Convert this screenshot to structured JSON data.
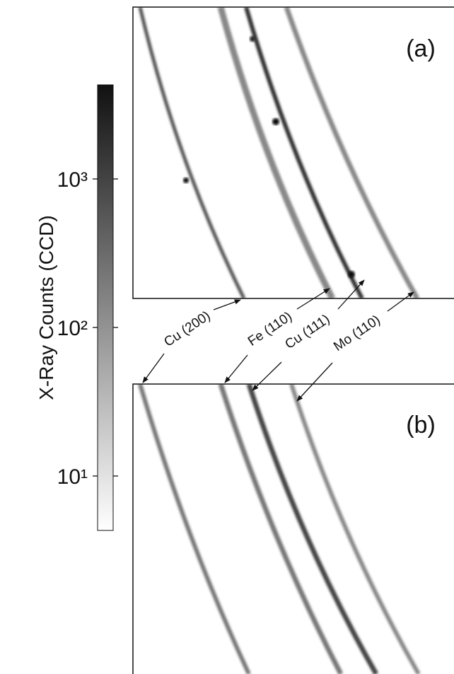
{
  "colorbar": {
    "label": "X-Ray Counts (CCD)",
    "scale": "log",
    "lim": [
      4.3,
      4300
    ],
    "ticks": [
      {
        "value": 1000,
        "label": "10³"
      },
      {
        "value": 100,
        "label": "10²"
      },
      {
        "value": 10,
        "label": "10¹"
      }
    ]
  },
  "panels": [
    {
      "label": "(a)"
    },
    {
      "label": "(b)"
    }
  ],
  "peaks": [
    "Cu (200)",
    "Fe (110)",
    "Cu (111)",
    "Mo (110)"
  ]
}
